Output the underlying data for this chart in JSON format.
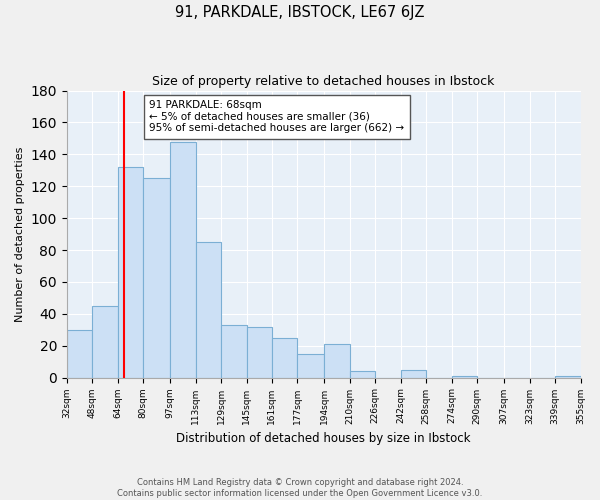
{
  "title": "91, PARKDALE, IBSTOCK, LE67 6JZ",
  "subtitle": "Size of property relative to detached houses in Ibstock",
  "xlabel": "Distribution of detached houses by size in Ibstock",
  "ylabel": "Number of detached properties",
  "bar_color": "#cce0f5",
  "bar_edge_color": "#7bafd4",
  "vline_x": 68,
  "vline_color": "red",
  "annotation_title": "91 PARKDALE: 68sqm",
  "annotation_line1": "← 5% of detached houses are smaller (36)",
  "annotation_line2": "95% of semi-detached houses are larger (662) →",
  "annotation_box_color": "white",
  "annotation_box_edge": "#555555",
  "bin_edges": [
    32,
    48,
    64,
    80,
    97,
    113,
    129,
    145,
    161,
    177,
    194,
    210,
    226,
    242,
    258,
    274,
    290,
    307,
    323,
    339,
    355
  ],
  "bin_counts": [
    30,
    45,
    132,
    125,
    148,
    85,
    33,
    32,
    25,
    15,
    21,
    4,
    0,
    5,
    0,
    1,
    0,
    0,
    0,
    1
  ],
  "ylim": [
    0,
    180
  ],
  "yticks": [
    0,
    20,
    40,
    60,
    80,
    100,
    120,
    140,
    160,
    180
  ],
  "xtick_labels": [
    "32sqm",
    "48sqm",
    "64sqm",
    "80sqm",
    "97sqm",
    "113sqm",
    "129sqm",
    "145sqm",
    "161sqm",
    "177sqm",
    "194sqm",
    "210sqm",
    "226sqm",
    "242sqm",
    "258sqm",
    "274sqm",
    "290sqm",
    "307sqm",
    "323sqm",
    "339sqm",
    "355sqm"
  ],
  "footer_line1": "Contains HM Land Registry data © Crown copyright and database right 2024.",
  "footer_line2": "Contains public sector information licensed under the Open Government Licence v3.0.",
  "background_color": "#f0f0f0",
  "plot_bg_color": "#e8f0f8"
}
